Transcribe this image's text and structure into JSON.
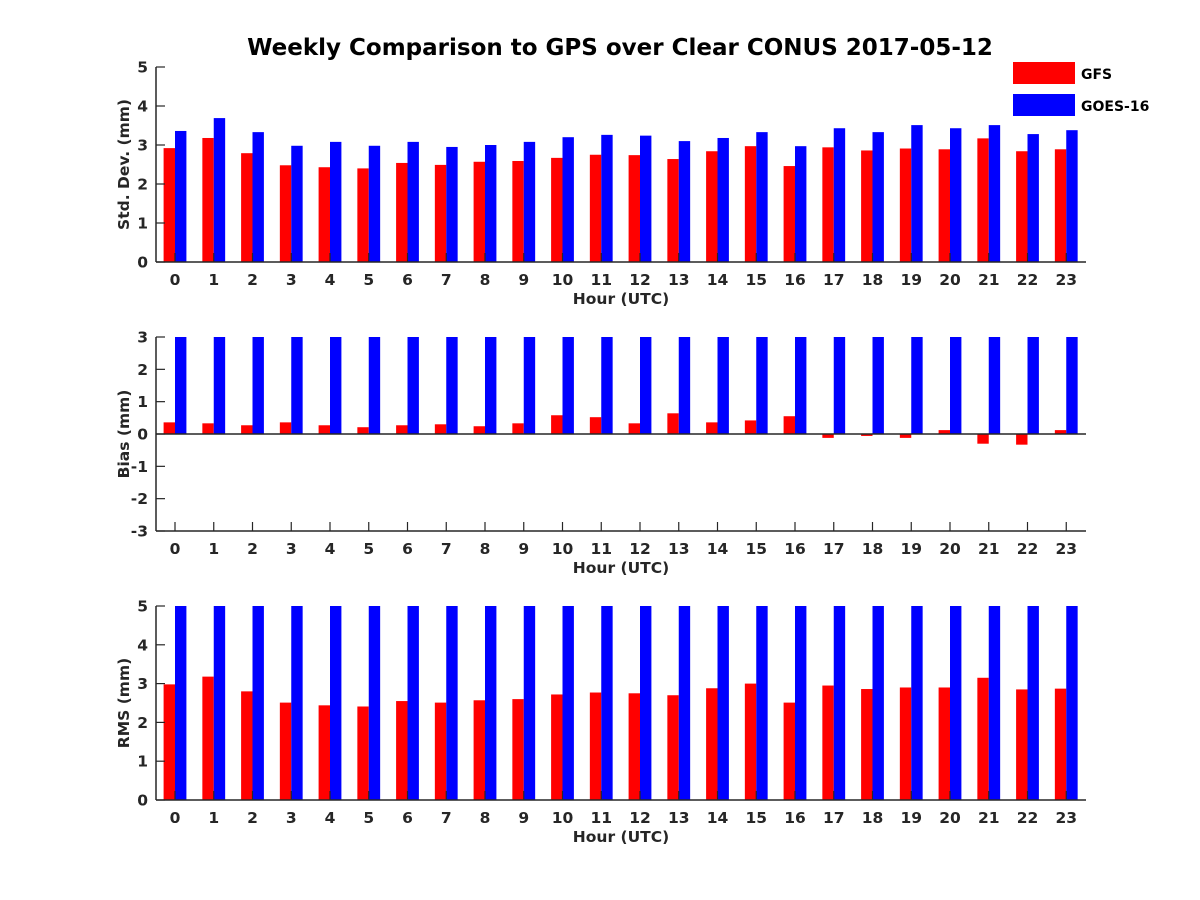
{
  "chart_data": [
    {
      "type": "bar",
      "title": "Weekly Comparison to GPS over Clear CONUS 2017-05-12",
      "xlabel": "Hour (UTC)",
      "ylabel": "Std. Dev. (mm)",
      "ylim": [
        0,
        5
      ],
      "yticks": [
        "0",
        "1",
        "2",
        "3",
        "4",
        "5"
      ],
      "categories": [
        "0",
        "1",
        "2",
        "3",
        "4",
        "5",
        "6",
        "7",
        "8",
        "9",
        "10",
        "11",
        "12",
        "13",
        "14",
        "15",
        "16",
        "17",
        "18",
        "19",
        "20",
        "21",
        "22",
        "23"
      ],
      "legend": {
        "position": "top-right-outside",
        "entries": [
          "GFS",
          "GOES-16"
        ]
      },
      "series": [
        {
          "name": "GFS",
          "color": "#ff0000",
          "values": [
            2.92,
            3.18,
            2.79,
            2.48,
            2.43,
            2.4,
            2.54,
            2.49,
            2.57,
            2.59,
            2.67,
            2.75,
            2.74,
            2.64,
            2.84,
            2.97,
            2.46,
            2.94,
            2.86,
            2.91,
            2.89,
            3.17,
            2.84,
            2.89
          ]
        },
        {
          "name": "GOES-16",
          "color": "#0000ff",
          "values": [
            3.36,
            3.69,
            3.33,
            2.98,
            3.08,
            2.98,
            3.08,
            2.95,
            3.0,
            3.08,
            3.2,
            3.26,
            3.24,
            3.1,
            3.18,
            3.33,
            2.97,
            3.43,
            3.33,
            3.51,
            3.43,
            3.51,
            3.28,
            3.38
          ]
        }
      ]
    },
    {
      "type": "bar",
      "xlabel": "Hour (UTC)",
      "ylabel": "Bias (mm)",
      "ylim": [
        -3,
        3
      ],
      "yticks": [
        "-3",
        "-2",
        "-1",
        "0",
        "1",
        "2",
        "3"
      ],
      "categories": [
        "0",
        "1",
        "2",
        "3",
        "4",
        "5",
        "6",
        "7",
        "8",
        "9",
        "10",
        "11",
        "12",
        "13",
        "14",
        "15",
        "16",
        "17",
        "18",
        "19",
        "20",
        "21",
        "22",
        "23"
      ],
      "series": [
        {
          "name": "GFS",
          "color": "#ff0000",
          "values": [
            0.36,
            0.33,
            0.27,
            0.36,
            0.27,
            0.21,
            0.27,
            0.3,
            0.24,
            0.33,
            0.58,
            0.52,
            0.33,
            0.64,
            0.36,
            0.42,
            0.55,
            -0.12,
            -0.06,
            -0.12,
            0.12,
            -0.3,
            -0.33,
            0.12
          ]
        },
        {
          "name": "GOES-16",
          "color": "#0000ff",
          "values": [
            3,
            3,
            3,
            3,
            3,
            3,
            3,
            3,
            3,
            3,
            3,
            3,
            3,
            3,
            3,
            3,
            3,
            3,
            3,
            3,
            3,
            3,
            3,
            3
          ]
        }
      ]
    },
    {
      "type": "bar",
      "xlabel": "Hour (UTC)",
      "ylabel": "RMS (mm)",
      "ylim": [
        0,
        5
      ],
      "yticks": [
        "0",
        "1",
        "2",
        "3",
        "4",
        "5"
      ],
      "categories": [
        "0",
        "1",
        "2",
        "3",
        "4",
        "5",
        "6",
        "7",
        "8",
        "9",
        "10",
        "11",
        "12",
        "13",
        "14",
        "15",
        "16",
        "17",
        "18",
        "19",
        "20",
        "21",
        "22",
        "23"
      ],
      "series": [
        {
          "name": "GFS",
          "color": "#ff0000",
          "values": [
            2.98,
            3.18,
            2.8,
            2.51,
            2.44,
            2.41,
            2.55,
            2.51,
            2.57,
            2.6,
            2.72,
            2.77,
            2.75,
            2.7,
            2.88,
            3.0,
            2.51,
            2.95,
            2.86,
            2.9,
            2.9,
            3.15,
            2.85,
            2.87
          ]
        },
        {
          "name": "GOES-16",
          "color": "#0000ff",
          "values": [
            5,
            5,
            5,
            5,
            5,
            5,
            5,
            5,
            5,
            5,
            5,
            5,
            5,
            5,
            5,
            5,
            5,
            5,
            5,
            5,
            5,
            5,
            5,
            5
          ]
        }
      ]
    }
  ]
}
